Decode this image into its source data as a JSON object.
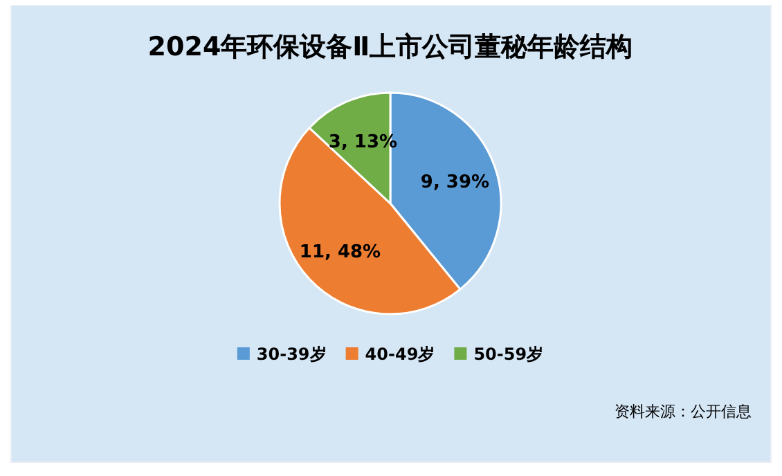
{
  "chart_data": {
    "type": "pie",
    "title": "2024年环保设备Ⅱ上市公司董秘年龄结构",
    "categories": [
      "30-39岁",
      "40-49岁",
      "50-59岁"
    ],
    "values": [
      9,
      11,
      3
    ],
    "value_labels": [
      "9, 39%",
      "11, 48%",
      "3, 13%"
    ],
    "colors": [
      "#5b9bd5",
      "#ed7d31",
      "#70ad47"
    ],
    "legend": "bottom",
    "annotations": [
      "资料来源：公开信息"
    ]
  }
}
